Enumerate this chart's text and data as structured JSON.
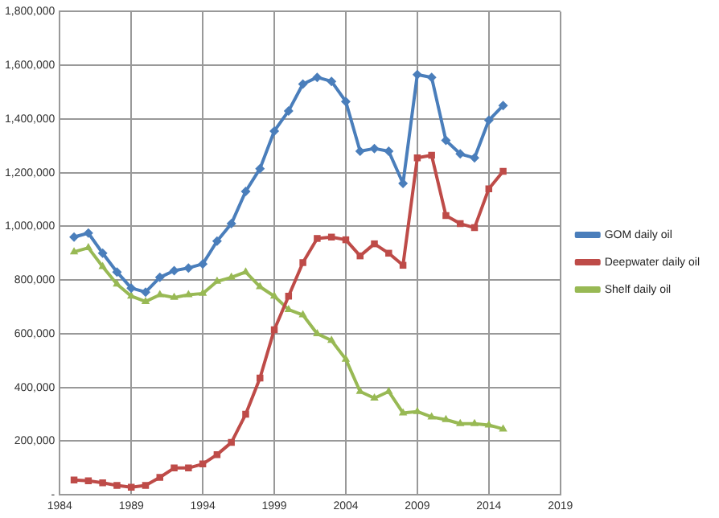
{
  "chart_data": {
    "type": "line",
    "x": [
      1985,
      1986,
      1987,
      1988,
      1989,
      1990,
      1991,
      1992,
      1993,
      1994,
      1995,
      1996,
      1997,
      1998,
      1999,
      2000,
      2001,
      2002,
      2003,
      2004,
      2005,
      2006,
      2007,
      2008,
      2009,
      2010,
      2011,
      2012,
      2013,
      2014,
      2015
    ],
    "series": [
      {
        "name": "GOM daily oil",
        "color": "#4a7ebb",
        "marker": "diamond",
        "values": [
          960000,
          975000,
          900000,
          830000,
          770000,
          755000,
          810000,
          835000,
          845000,
          860000,
          945000,
          1010000,
          1130000,
          1215000,
          1355000,
          1430000,
          1530000,
          1555000,
          1540000,
          1465000,
          1280000,
          1290000,
          1280000,
          1160000,
          1565000,
          1555000,
          1320000,
          1270000,
          1255000,
          1395000,
          1450000
        ]
      },
      {
        "name": "Deepwater daily oil",
        "color": "#be4b48",
        "marker": "square",
        "values": [
          55000,
          52000,
          45000,
          35000,
          28000,
          35000,
          65000,
          100000,
          100000,
          115000,
          150000,
          195000,
          300000,
          435000,
          615000,
          740000,
          865000,
          955000,
          960000,
          950000,
          890000,
          935000,
          900000,
          855000,
          1255000,
          1265000,
          1040000,
          1010000,
          995000,
          1140000,
          1205000
        ]
      },
      {
        "name": "Shelf daily oil",
        "color": "#98b954",
        "marker": "triangle",
        "values": [
          905000,
          920000,
          850000,
          785000,
          740000,
          720000,
          745000,
          735000,
          745000,
          750000,
          795000,
          810000,
          830000,
          775000,
          740000,
          690000,
          670000,
          600000,
          575000,
          505000,
          385000,
          360000,
          385000,
          305000,
          310000,
          290000,
          280000,
          265000,
          265000,
          260000,
          245000
        ]
      }
    ],
    "xlim": [
      1984,
      2019
    ],
    "xticks": [
      1984,
      1989,
      1994,
      1999,
      2004,
      2009,
      2014,
      2019
    ],
    "ylim": [
      0,
      1800000
    ],
    "yticks": [
      {
        "value": 0,
        "label": "-"
      },
      {
        "value": 200000,
        "label": "200,000"
      },
      {
        "value": 400000,
        "label": "400,000"
      },
      {
        "value": 600000,
        "label": "600,000"
      },
      {
        "value": 800000,
        "label": "800,000"
      },
      {
        "value": 1000000,
        "label": "1,000,000"
      },
      {
        "value": 1200000,
        "label": "1,200,000"
      },
      {
        "value": 1400000,
        "label": "1,400,000"
      },
      {
        "value": 1600000,
        "label": "1,600,000"
      },
      {
        "value": 1800000,
        "label": "1,800,000"
      }
    ],
    "grid": true,
    "legend": "right",
    "line_style": "solid"
  }
}
